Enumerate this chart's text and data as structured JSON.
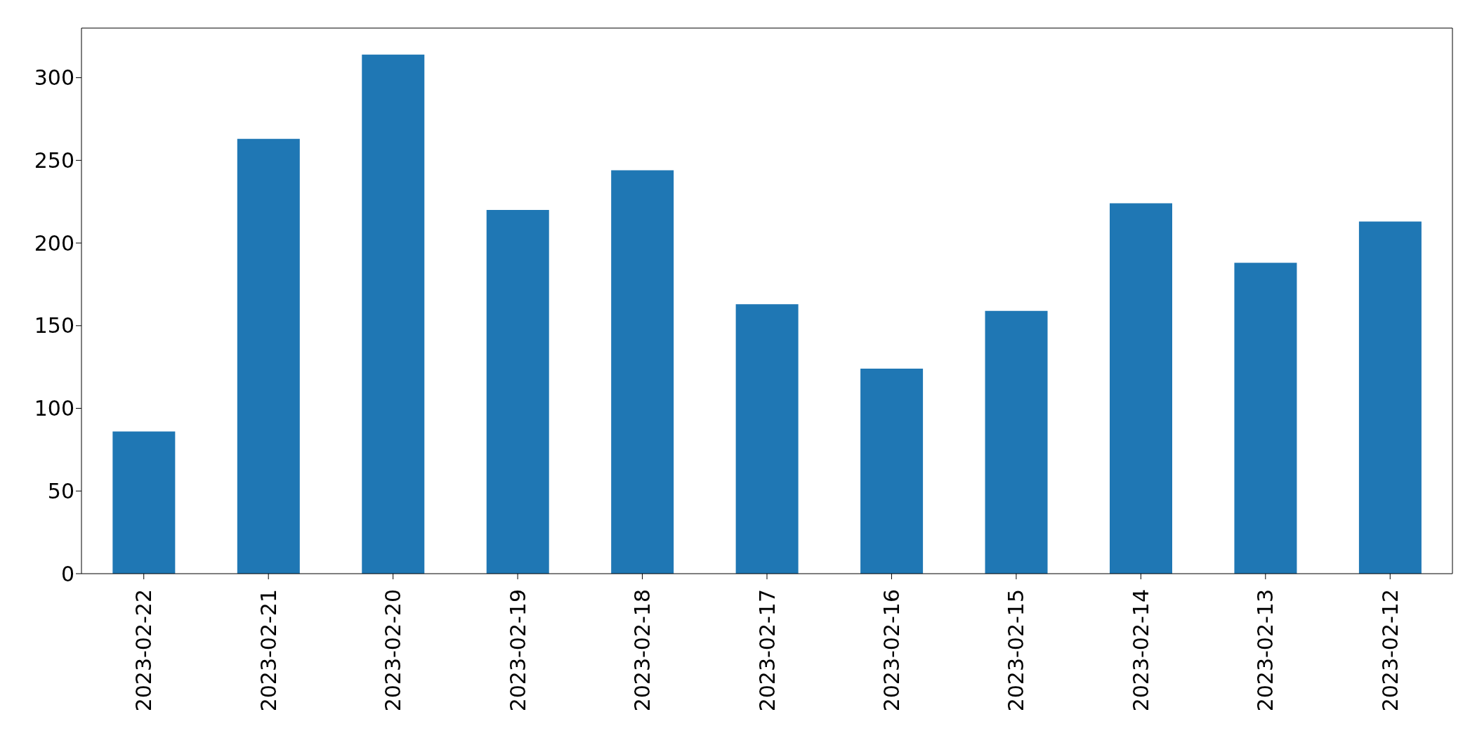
{
  "chart_data": {
    "type": "bar",
    "categories": [
      "2023-02-22",
      "2023-02-21",
      "2023-02-20",
      "2023-02-19",
      "2023-02-18",
      "2023-02-17",
      "2023-02-16",
      "2023-02-15",
      "2023-02-14",
      "2023-02-13",
      "2023-02-12"
    ],
    "values": [
      86,
      263,
      314,
      220,
      244,
      163,
      124,
      159,
      224,
      188,
      213
    ],
    "color": "#1f77b4",
    "ylim": [
      0,
      330
    ],
    "yticks": [
      0,
      50,
      100,
      150,
      200,
      250,
      300
    ],
    "grid": false,
    "legend": false
  }
}
